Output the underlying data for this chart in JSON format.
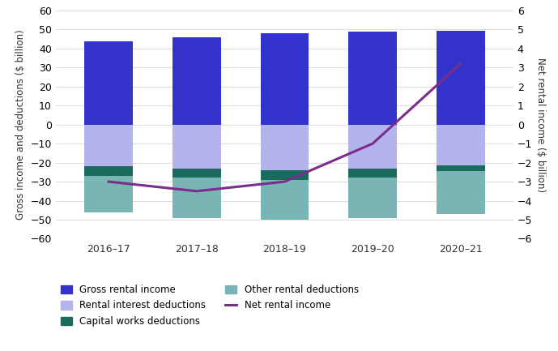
{
  "years": [
    "2016–17",
    "2017–18",
    "2018–19",
    "2019–20",
    "2020–21"
  ],
  "gross_rental_income": [
    44.0,
    46.0,
    48.0,
    49.0,
    49.5
  ],
  "rental_interest_deductions": [
    -22.0,
    -23.0,
    -24.0,
    -23.0,
    -21.5
  ],
  "capital_works_deductions": [
    -5.0,
    -5.0,
    -5.0,
    -5.0,
    -3.0
  ],
  "other_rental_deductions": [
    -19.0,
    -21.0,
    -21.0,
    -21.0,
    -22.5
  ],
  "net_rental_income": [
    -3.0,
    -3.5,
    -3.0,
    -1.0,
    3.2
  ],
  "color_gross": "#3333cc",
  "color_interest": "#b3b3ee",
  "color_capital": "#1a6b5e",
  "color_other": "#7ab5b5",
  "color_net": "#7b2d8b",
  "ylabel_left": "Gross income and deductions ($ billion)",
  "ylabel_right": "Net rental income ($ billion)",
  "ylim_left": [
    -60,
    60
  ],
  "ylim_right": [
    -6,
    6
  ],
  "yticks_left": [
    -60,
    -50,
    -40,
    -30,
    -20,
    -10,
    0,
    10,
    20,
    30,
    40,
    50,
    60
  ],
  "yticks_right": [
    -6,
    -5,
    -4,
    -3,
    -2,
    -1,
    0,
    1,
    2,
    3,
    4,
    5,
    6
  ],
  "bar_width": 0.55,
  "background_color": "#ffffff",
  "grid_color": "#dddddd",
  "legend_labels": [
    "Gross rental income",
    "Rental interest deductions",
    "Capital works deductions",
    "Other rental deductions",
    "Net rental income"
  ]
}
